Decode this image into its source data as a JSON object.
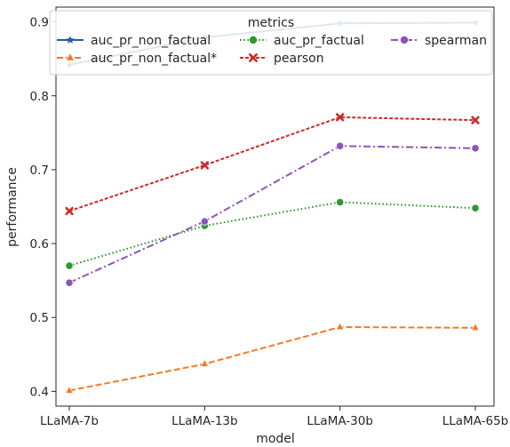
{
  "chart_data": {
    "type": "line",
    "xlabel": "model",
    "ylabel": "performance",
    "categories": [
      "LLaMA-7b",
      "LLaMA-13b",
      "LLaMA-30b",
      "LLaMA-65b"
    ],
    "ylim": [
      0.38,
      0.92
    ],
    "yticks": [
      0.4,
      0.5,
      0.6,
      0.7,
      0.8,
      0.9
    ],
    "grid": false,
    "legend": {
      "title": "metrics",
      "placement": "top-center"
    },
    "series": [
      {
        "name": "auc_pr_non_factual",
        "values": [
          0.842,
          0.879,
          0.898,
          0.899
        ],
        "color": "#1f5fa0",
        "dash": "solid",
        "marker": "star"
      },
      {
        "name": "auc_pr_non_factual*",
        "values": [
          0.401,
          0.437,
          0.487,
          0.486
        ],
        "color": "#f07a2a",
        "dash": "dashed",
        "marker": "triangle"
      },
      {
        "name": "auc_pr_factual",
        "values": [
          0.57,
          0.624,
          0.656,
          0.648
        ],
        "color": "#2a9a2a",
        "dash": "dotted",
        "marker": "circle"
      },
      {
        "name": "pearson",
        "values": [
          0.644,
          0.706,
          0.771,
          0.767
        ],
        "color": "#cc2b2b",
        "dash": "densedash",
        "marker": "x"
      },
      {
        "name": "spearman",
        "values": [
          0.547,
          0.63,
          0.732,
          0.729
        ],
        "color": "#8a55b8",
        "dash": "dashdot",
        "marker": "circle"
      }
    ]
  }
}
